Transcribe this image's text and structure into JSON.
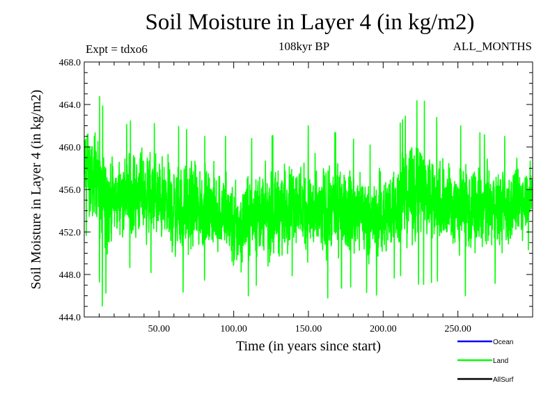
{
  "header": {
    "experiment": "Expt = tdxo6",
    "period": "108kyr BP",
    "months": "ALL_MONTHS"
  },
  "chart_data": {
    "type": "line",
    "title": "Soil Moisture in Layer 4 (in kg/m2)",
    "xlabel": "Time (in years since start)",
    "ylabel": "Soil Moisture in Layer 4 (in kg/m2)",
    "xlim": [
      0,
      300
    ],
    "ylim": [
      444,
      468
    ],
    "x_ticks": [
      50,
      100,
      150,
      200,
      250
    ],
    "x_tick_labels": [
      "50.00",
      "100.00",
      "150.00",
      "200.00",
      "250.00"
    ],
    "y_ticks": [
      444,
      448,
      452,
      456,
      460,
      464,
      468
    ],
    "y_tick_labels": [
      "444.0",
      "448.0",
      "452.0",
      "456.0",
      "460.0",
      "464.0",
      "468.0"
    ],
    "legend": {
      "position": "bottom-right",
      "entries": [
        {
          "name": "Ocean",
          "color": "#0000ff"
        },
        {
          "name": "Land",
          "color": "#00ff00"
        },
        {
          "name": "AllSurf",
          "color": "#000000"
        }
      ]
    },
    "series": [
      {
        "name": "Land",
        "color": "#00ff00",
        "x_start": 0.083,
        "x_step": 0.0833,
        "n_points": 3600,
        "envelope_years": [
          0,
          2,
          5,
          8,
          12,
          20,
          35,
          50,
          62,
          80,
          95,
          100,
          115,
          125,
          140,
          155,
          175,
          195,
          210,
          225,
          240,
          255,
          270,
          285,
          300
        ],
        "envelope_min": [
          451,
          452,
          449,
          450,
          445,
          449,
          448.5,
          448,
          446,
          447.5,
          446.5,
          444.1,
          447,
          446,
          448,
          445,
          447,
          446,
          448,
          447,
          447.5,
          446,
          447,
          447.5,
          451
        ],
        "envelope_max": [
          465,
          465,
          464,
          465.8,
          464,
          461,
          463,
          462,
          462,
          461,
          461,
          460,
          461,
          461,
          462,
          462,
          461,
          460,
          462,
          464.8,
          462,
          462,
          461,
          461,
          460.5
        ],
        "mean": 454.5
      }
    ]
  }
}
